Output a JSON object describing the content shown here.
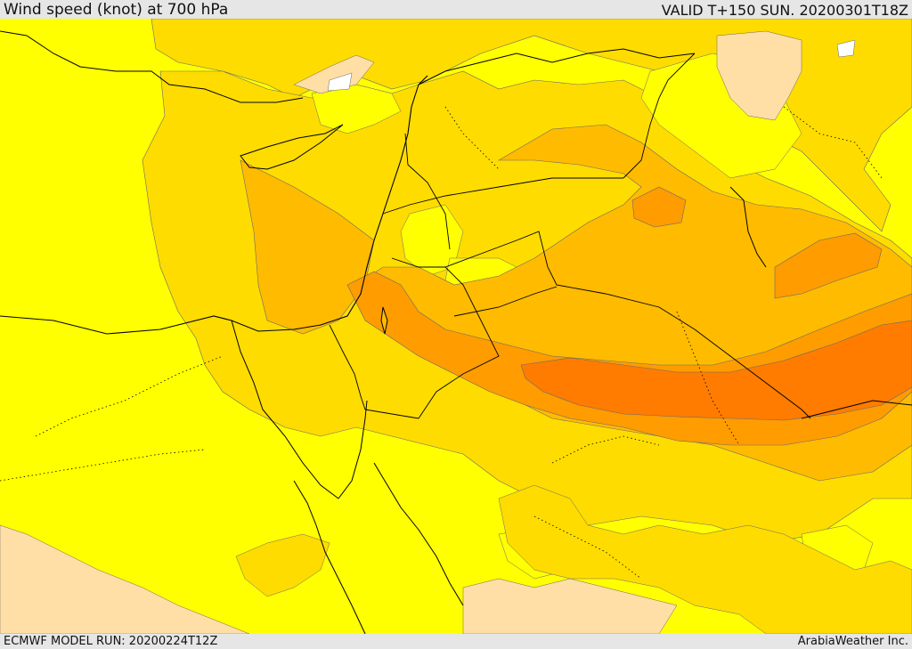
{
  "header": {
    "title": "Wind speed (knot) at 700 hPa",
    "valid_time": "VALID T+150 SUN. 20200301T18Z"
  },
  "footer": {
    "model_run": "ECMWF MODEL RUN: 20200224T12Z",
    "credit": "ArabiaWeather Inc."
  },
  "colors": {
    "band_lowest": "#ffffff",
    "band_low": "#ffdfa6",
    "band_1": "#ffff00",
    "band_2": "#ffdc00",
    "band_3": "#ffbb00",
    "band_4": "#ff9c00",
    "band_5": "#ff7c00",
    "coastline": "#000000",
    "contour": "#555555"
  }
}
